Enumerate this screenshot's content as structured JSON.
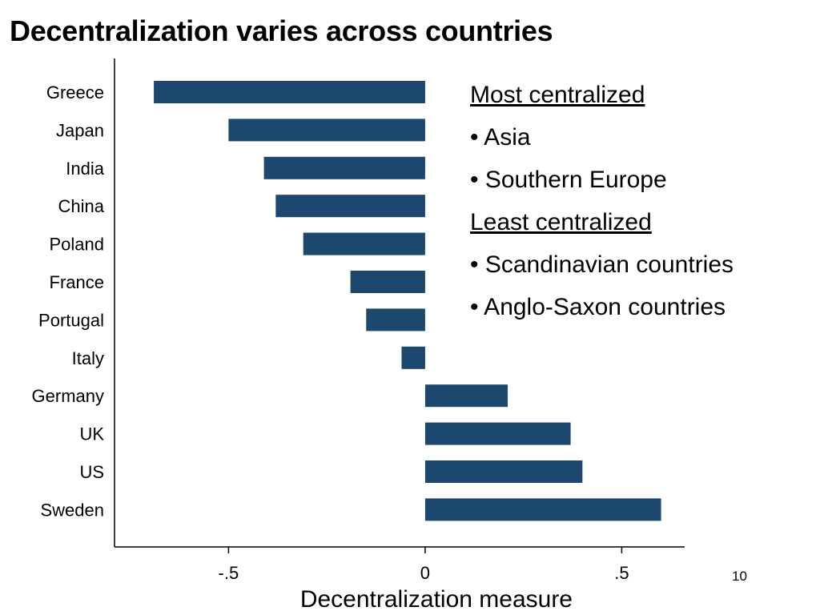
{
  "title": "Decentralization varies across countries",
  "notes": {
    "most_heading": "Most centralized",
    "most_items": [
      "• Asia",
      "• Southern Europe"
    ],
    "least_heading": "Least centralized",
    "least_items": [
      "• Scandinavian countries",
      "• Anglo-Saxon countries"
    ]
  },
  "page_number": "10",
  "colors": {
    "bar": "#1c4870",
    "axis": "#000000"
  },
  "chart_data": {
    "type": "bar",
    "orientation": "horizontal",
    "categories": [
      "Greece",
      "Japan",
      "India",
      "China",
      "Poland",
      "France",
      "Portugal",
      "Italy",
      "Germany",
      "UK",
      "US",
      "Sweden"
    ],
    "values": [
      -0.69,
      -0.5,
      -0.41,
      -0.38,
      -0.31,
      -0.19,
      -0.15,
      -0.06,
      0.21,
      0.37,
      0.4,
      0.6
    ],
    "xlabel": "Decentralization measure",
    "ylabel": "",
    "xticks": [
      -0.5,
      0,
      0.5
    ],
    "xtick_labels": [
      "-.5",
      "0",
      ".5"
    ],
    "xlim": [
      -0.79,
      0.66
    ],
    "grid": false,
    "legend": "none"
  }
}
